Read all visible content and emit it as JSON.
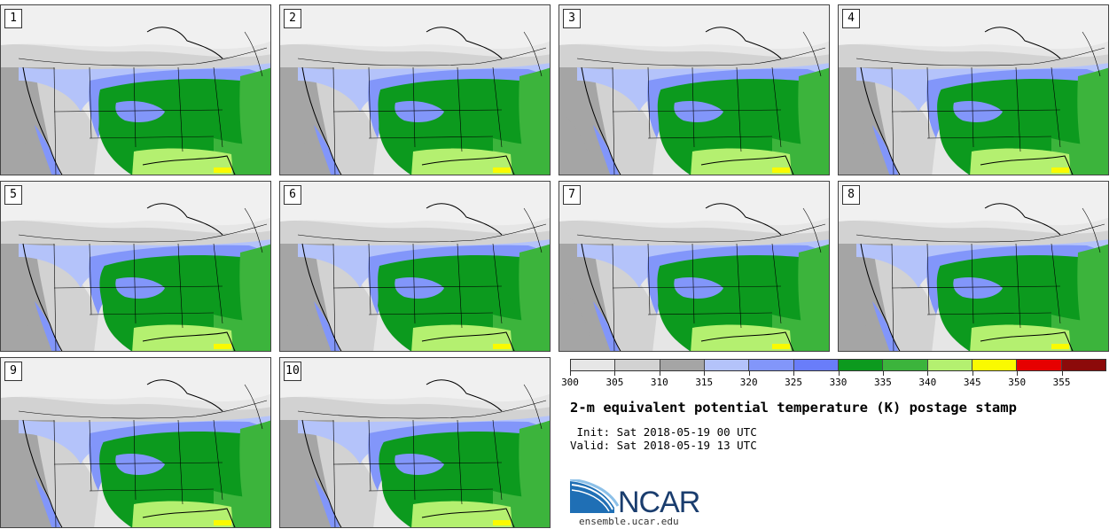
{
  "stamps": [
    {
      "label": "1"
    },
    {
      "label": "2"
    },
    {
      "label": "3"
    },
    {
      "label": "4"
    },
    {
      "label": "5"
    },
    {
      "label": "6"
    },
    {
      "label": "7"
    },
    {
      "label": "8"
    },
    {
      "label": "9"
    },
    {
      "label": "10"
    }
  ],
  "colorbar": {
    "colors": [
      "#e6e6e6",
      "#d2d2d2",
      "#a5a5a5",
      "#b4c3fa",
      "#8296fa",
      "#697dfa",
      "#0c9a1e",
      "#3cb43c",
      "#b4f070",
      "#fafa00",
      "#e60000",
      "#8c0a0a"
    ],
    "tick_labels": [
      "300",
      "305",
      "310",
      "315",
      "320",
      "325",
      "330",
      "335",
      "340",
      "345",
      "350",
      "355"
    ],
    "min": 300,
    "max": 360,
    "step": 5
  },
  "title": "2-m equivalent potential temperature (K) postage stamp",
  "init": " Init: Sat 2018-05-19 00 UTC",
  "valid": "Valid: Sat 2018-05-19 13 UTC",
  "logo": {
    "text": "NCAR",
    "url": "ensemble.ucar.edu"
  }
}
